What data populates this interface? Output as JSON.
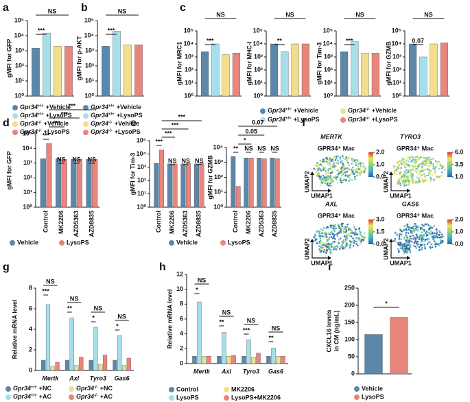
{
  "chart_data": [
    {
      "panel": "a",
      "type": "bar",
      "ylabel": "gMFI for GFP",
      "yscale": "log",
      "ylim": [
        1,
        100000
      ],
      "yticks": [
        {
          "value": 1,
          "label": "10⁰"
        },
        {
          "value": 10,
          "label": "10¹"
        },
        {
          "value": 100,
          "label": "10²"
        },
        {
          "value": 1000,
          "label": "10³"
        },
        {
          "value": 10000,
          "label": "10⁴"
        },
        {
          "value": 100000,
          "label": "10⁵"
        }
      ],
      "values": [
        1500,
        15000,
        2000,
        2000
      ],
      "colors": [
        "#5b87aa",
        "#a6dfe9",
        "#f1de8e",
        "#e9857c"
      ],
      "legend": [
        {
          "gene": "Gpr34",
          "genotype": "+/+",
          "treatment": "+Vehicle"
        },
        {
          "gene": "Gpr34",
          "genotype": "+/+",
          "treatment": "+LysoPS"
        },
        {
          "gene": "Gpr34",
          "genotype": "-/-",
          "treatment": "+Vehicle"
        },
        {
          "gene": "Gpr34",
          "genotype": "-/-",
          "treatment": "+LysoPS"
        }
      ],
      "annotations": [
        "***",
        "NS"
      ]
    },
    {
      "panel": "b",
      "type": "bar",
      "ylabel": "gMFI for p-AKT",
      "yscale": "log",
      "ylim": [
        1,
        100000
      ],
      "yticks": [
        {
          "value": 1,
          "label": "10⁰"
        },
        {
          "value": 10,
          "label": "10¹"
        },
        {
          "value": 100,
          "label": "10²"
        },
        {
          "value": 1000,
          "label": "10³"
        },
        {
          "value": 10000,
          "label": "10⁴"
        },
        {
          "value": 100000,
          "label": "10⁵"
        }
      ],
      "values": [
        2000,
        20000,
        2500,
        2500
      ],
      "colors": [
        "#5b87aa",
        "#a6dfe9",
        "#f1de8e",
        "#e9857c"
      ],
      "legend": [
        {
          "gene": "Gpr34",
          "genotype": "+/+",
          "treatment": "+Vehicle"
        },
        {
          "gene": "Gpr34",
          "genotype": "+/+",
          "treatment": "+LysoPS"
        },
        {
          "gene": "Gpr34",
          "genotype": "-/-",
          "treatment": "+Vehicle"
        },
        {
          "gene": "Gpr34",
          "genotype": "-/-",
          "treatment": "+LysoPS"
        }
      ],
      "annotations": [
        "***",
        "NS"
      ]
    },
    {
      "panel": "c",
      "type": "bar",
      "ylabel": "gMFI for MRC1",
      "yscale": "log",
      "ylim": [
        1,
        100000
      ],
      "yticks": [
        {
          "value": 1,
          "label": "10⁰"
        },
        {
          "value": 10,
          "label": "10¹"
        },
        {
          "value": 100,
          "label": "10²"
        },
        {
          "value": 1000,
          "label": "10³"
        },
        {
          "value": 10000,
          "label": "10⁴"
        },
        {
          "value": 100000,
          "label": "10⁵"
        }
      ],
      "values": [
        2500,
        10000,
        1500,
        2000
      ],
      "colors": [
        "#5b87aa",
        "#a6dfe9",
        "#f1de8e",
        "#e9857c"
      ],
      "legend": [
        {
          "gene": "Gpr34",
          "genotype": "+/+",
          "treatment": "+Vehicle"
        },
        {
          "gene": "Gpr34",
          "genotype": "+/+",
          "treatment": "+LysoPS"
        },
        {
          "gene": "Gpr34",
          "genotype": "-/-",
          "treatment": "+Vehicle"
        },
        {
          "gene": "Gpr34",
          "genotype": "-/-",
          "treatment": "+LysoPS"
        }
      ],
      "annotations": [
        "***",
        "NS"
      ]
    },
    {
      "type": "bar",
      "ylabel": "gMFI for MHC-I",
      "yscale": "log",
      "ylim": [
        1,
        100000
      ],
      "yticks": [
        {
          "value": 1,
          "label": "10⁰"
        },
        {
          "value": 10,
          "label": "10¹"
        },
        {
          "value": 100,
          "label": "10²"
        },
        {
          "value": 1000,
          "label": "10³"
        },
        {
          "value": 10000,
          "label": "10⁴"
        },
        {
          "value": 100000,
          "label": "10⁵"
        }
      ],
      "values": [
        10000,
        2500,
        10000,
        10000
      ],
      "colors": [
        "#5b87aa",
        "#a6dfe9",
        "#f1de8e",
        "#e9857c"
      ],
      "annotations": [
        "**",
        "NS"
      ]
    },
    {
      "type": "bar",
      "ylabel": "gMFI for Tim-3",
      "yscale": "log",
      "ylim": [
        1,
        100000
      ],
      "yticks": [
        {
          "value": 1,
          "label": "10⁰"
        },
        {
          "value": 10,
          "label": "10¹"
        },
        {
          "value": 100,
          "label": "10²"
        },
        {
          "value": 1000,
          "label": "10³"
        },
        {
          "value": 10000,
          "label": "10⁴"
        },
        {
          "value": 100000,
          "label": "10⁵"
        }
      ],
      "values": [
        2500,
        15000,
        2000,
        2000
      ],
      "colors": [
        "#5b87aa",
        "#a6dfe9",
        "#f1de8e",
        "#e9857c"
      ],
      "annotations": [
        "***",
        "NS"
      ]
    },
    {
      "type": "bar",
      "ylabel": "gMFI for GZMB",
      "yscale": "log",
      "ylim": [
        1,
        100000
      ],
      "yticks": [
        {
          "value": 1,
          "label": "10⁰"
        },
        {
          "value": 10,
          "label": "10¹"
        },
        {
          "value": 100,
          "label": "10²"
        },
        {
          "value": 1000,
          "label": "10³"
        },
        {
          "value": 10000,
          "label": "10⁴"
        },
        {
          "value": 100000,
          "label": "10⁵"
        }
      ],
      "values": [
        10000,
        1000,
        10000,
        12000
      ],
      "colors": [
        "#5b87aa",
        "#a6dfe9",
        "#f1de8e",
        "#e9857c"
      ],
      "annotations": [
        "0.07",
        "NS"
      ]
    },
    {
      "panel": "d",
      "type": "bar",
      "ylabel": "gMFI for GFP",
      "yscale": "log",
      "ylim": [
        1,
        100000
      ],
      "yticks": [
        {
          "value": 1,
          "label": "10⁰"
        },
        {
          "value": 10,
          "label": "10¹"
        },
        {
          "value": 100,
          "label": "10²"
        },
        {
          "value": 1000,
          "label": "10³"
        },
        {
          "value": 10000,
          "label": "10⁴"
        },
        {
          "value": 100000,
          "label": "10⁵"
        }
      ],
      "categories": [
        "Control",
        "MK2206",
        "AZD5363",
        "AZD8835"
      ],
      "series": [
        {
          "name": "Vehicle",
          "color": "#5b87aa",
          "values": [
            2000,
            2000,
            1800,
            1800
          ]
        },
        {
          "name": "LysoPS",
          "color": "#e9857c",
          "values": [
            22000,
            1800,
            1800,
            1800
          ]
        }
      ],
      "annotations": [
        "***",
        "NS",
        "NS",
        "NS",
        "***",
        "***",
        "***"
      ]
    },
    {
      "panel": "e",
      "type": "bar",
      "ylabel": "gMFI for Tim-3",
      "yscale": "log",
      "ylim": [
        1,
        100000
      ],
      "yticks": [
        {
          "value": 1,
          "label": "10⁰"
        },
        {
          "value": 10,
          "label": "10¹"
        },
        {
          "value": 100,
          "label": "10²"
        },
        {
          "value": 1000,
          "label": "10³"
        },
        {
          "value": 10000,
          "label": "10⁴"
        },
        {
          "value": 100000,
          "label": "10⁵"
        }
      ],
      "categories": [
        "Control",
        "MK2206",
        "AZD5363",
        "AZD8835"
      ],
      "series": [
        {
          "name": "Vehicle",
          "color": "#5b87aa",
          "values": [
            2000,
            1800,
            1800,
            1800
          ]
        },
        {
          "name": "LysoPS",
          "color": "#e9857c",
          "values": [
            20000,
            1800,
            2000,
            2000
          ]
        }
      ],
      "annotations": [
        "***",
        "NS",
        "NS",
        "NS",
        "***",
        "***",
        "***"
      ]
    },
    {
      "type": "bar",
      "ylabel": "gMFI for GZMB",
      "yscale": "log",
      "ylim": [
        1,
        10000
      ],
      "yticks": [
        {
          "value": 1,
          "label": "10⁰"
        },
        {
          "value": 10,
          "label": "10¹"
        },
        {
          "value": 100,
          "label": "10²"
        },
        {
          "value": 1000,
          "label": "10³"
        },
        {
          "value": 10000,
          "label": "10⁴"
        }
      ],
      "categories": [
        "Control",
        "MK2206",
        "AZD5363",
        "AZD8835"
      ],
      "series": [
        {
          "color": "#5b87aa",
          "values": [
            2500,
            2000,
            2000,
            2000
          ]
        },
        {
          "color": "#e9857c",
          "values": [
            25,
            2000,
            1800,
            1800
          ]
        }
      ],
      "annotations": [
        "**",
        "NS",
        "NS",
        "NS",
        "*",
        "0.05",
        "0.07"
      ]
    },
    {
      "panel": "f",
      "type": "umap",
      "title": "MERTK",
      "label": "GPR34⁺ Mac",
      "xlabel": "UMAP1",
      "ylabel": "UMAP2",
      "clim": [
        0,
        2
      ],
      "colorbar_ticks": [
        {
          "value": 0,
          "label": "0.0"
        },
        {
          "value": 1,
          "label": "1.0"
        },
        {
          "value": 2,
          "label": "2.0"
        }
      ]
    },
    {
      "type": "umap",
      "title": "TYRO3",
      "label": "GPR34⁺ Mac",
      "xlabel": "UMAP1",
      "ylabel": "UMAP2",
      "clim": [
        1,
        6
      ],
      "colorbar_ticks": [
        {
          "value": 1,
          "label": "1.0"
        },
        {
          "value": 3.5,
          "label": "3.5"
        },
        {
          "value": 6,
          "label": "6.0"
        }
      ]
    },
    {
      "type": "umap",
      "title": "AXL",
      "label": "GPR34⁺ Mac",
      "xlabel": "UMAP1",
      "ylabel": "UMAP2",
      "clim": [
        0,
        3
      ],
      "colorbar_ticks": [
        {
          "value": 0,
          "label": "0.0"
        },
        {
          "value": 1.5,
          "label": "1.5"
        },
        {
          "value": 3,
          "label": "3.0"
        }
      ]
    },
    {
      "type": "umap",
      "title": "GAS6",
      "label": "GPR34⁺ Mac",
      "xlabel": "UMAP1",
      "ylabel": "UMAP2",
      "clim": [
        0,
        2
      ],
      "colorbar_ticks": [
        {
          "value": 0,
          "label": "0.0"
        },
        {
          "value": 1,
          "label": "1.0"
        },
        {
          "value": 2,
          "label": "2.0"
        }
      ]
    },
    {
      "panel": "g",
      "type": "bar",
      "ylabel": "Relative mRNA level",
      "ylim": [
        0,
        8
      ],
      "yticks": [
        0,
        2,
        4,
        6,
        8
      ],
      "categories": [
        "Mertk",
        "Axl",
        "Tyro3",
        "Gas6"
      ],
      "series": [
        {
          "gene": "Gpr34",
          "genotype": "+/+",
          "treatment": "+NC",
          "color": "#5b87aa",
          "values": [
            1,
            1,
            1,
            1
          ]
        },
        {
          "gene": "Gpr34",
          "genotype": "+/+",
          "treatment": "+AC",
          "color": "#a6dfe9",
          "values": [
            6.4,
            5.1,
            4.2,
            3.4
          ]
        },
        {
          "gene": "Gpr34",
          "genotype": "-/-",
          "treatment": "+NC",
          "color": "#f1de8e",
          "values": [
            0.4,
            0.5,
            0.6,
            0.5
          ]
        },
        {
          "gene": "Gpr34",
          "genotype": "-/-",
          "treatment": "+AC",
          "color": "#e9857c",
          "values": [
            0.8,
            1.3,
            1.5,
            1.2
          ]
        }
      ],
      "annotations": [
        "***",
        "NS",
        "**",
        "NS",
        "*",
        "NS",
        "*",
        "NS"
      ]
    },
    {
      "panel": "h",
      "type": "bar",
      "ylabel": "Relative mRNA level",
      "ylim": [
        0,
        12
      ],
      "yticks": [
        0,
        2,
        4,
        6,
        8,
        10,
        12
      ],
      "categories": [
        "Mertk",
        "Axl",
        "Tyro3",
        "Gas6"
      ],
      "series": [
        {
          "name": "Control",
          "color": "#5b87aa",
          "values": [
            1,
            1,
            1,
            1
          ]
        },
        {
          "name": "LysoPS",
          "color": "#a6dfe9",
          "values": [
            8.3,
            4.2,
            3.2,
            2.1
          ]
        },
        {
          "name": "MK2206",
          "color": "#f1de8e",
          "values": [
            1,
            1,
            0.9,
            1
          ]
        },
        {
          "name": "LysoPS+MK2206",
          "color": "#e9857c",
          "values": [
            1,
            1.1,
            1.4,
            1
          ]
        }
      ],
      "annotations": [
        "*",
        "NS",
        "**",
        "NS",
        "***",
        "NS",
        "**",
        "NS"
      ]
    },
    {
      "panel": "i",
      "type": "bar",
      "ylabel": [
        "CXCL16 levels",
        "in CM (ng/mL)"
      ],
      "ylim": [
        0,
        250
      ],
      "yticks": [
        0,
        50,
        100,
        150,
        200,
        250
      ],
      "categories": [
        "Vehicle",
        "LysoPS"
      ],
      "values": [
        115,
        165
      ],
      "colors": [
        "#5b87aa",
        "#e9857c"
      ],
      "annotations": [
        "*"
      ]
    }
  ]
}
